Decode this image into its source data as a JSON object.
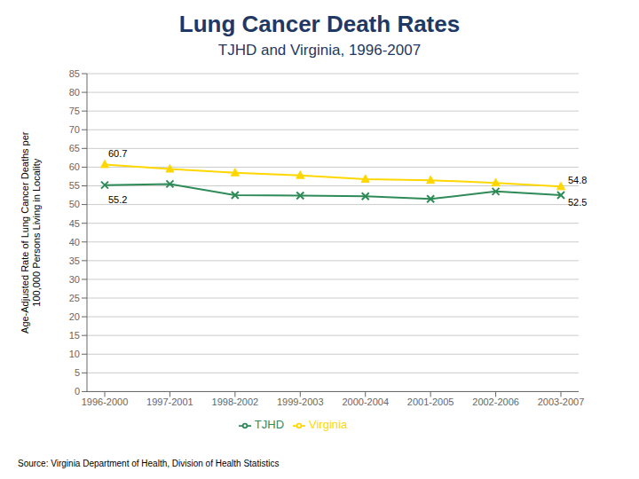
{
  "chart_data": {
    "type": "line",
    "title": "Lung Cancer Death Rates",
    "subtitle": "TJHD and Virginia, 1996-2007",
    "ylabel": "Age-Adjusted Rate of Lung Cancer Deaths per\n100,000 Persons Living in Locality",
    "source": "Source: Virginia Department of Health, Division of Health Statistics",
    "categories": [
      "1996-2000",
      "1997-2001",
      "1998-2002",
      "1999-2003",
      "2000-2004",
      "2001-2005",
      "2002-2006",
      "2003-2007"
    ],
    "series": [
      {
        "name": "TJHD",
        "color": "#2E8B57",
        "marker": "x",
        "values": [
          55.2,
          55.5,
          52.5,
          52.4,
          52.2,
          51.5,
          53.5,
          52.5
        ]
      },
      {
        "name": "Virginia",
        "color": "#FFD700",
        "marker": "triangle",
        "values": [
          60.7,
          59.5,
          58.5,
          57.8,
          56.8,
          56.5,
          55.8,
          54.8
        ]
      }
    ],
    "annotations": [
      {
        "text": "60.7",
        "x": "1996-2000",
        "y": 60.7
      },
      {
        "text": "55.2",
        "x": "1996-2000",
        "y": 55.2
      },
      {
        "text": "54.8",
        "x": "2003-2007",
        "y": 54.8
      },
      {
        "text": "52.5",
        "x": "2003-2007",
        "y": 52.5
      }
    ],
    "ylim": [
      0,
      85
    ],
    "yticks": [
      0,
      5,
      10,
      15,
      20,
      25,
      30,
      35,
      40,
      45,
      50,
      55,
      60,
      65,
      70,
      75,
      80,
      85
    ],
    "grid": true,
    "legend": "bottom"
  }
}
